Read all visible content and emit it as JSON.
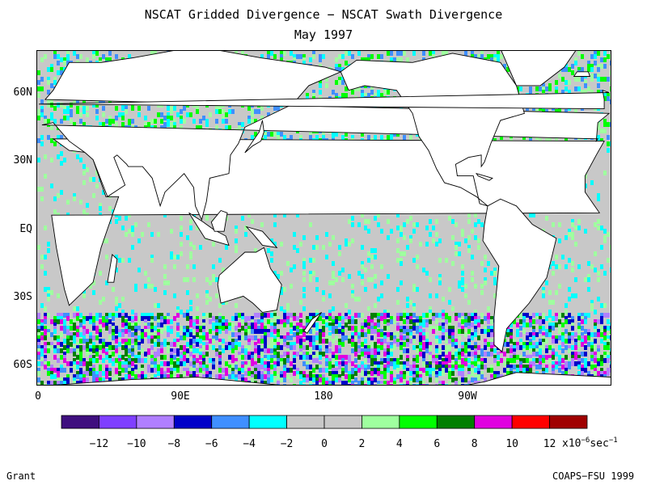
{
  "title": "NSCAT Gridded Divergence − NSCAT Swath Divergence",
  "subtitle": "May 1997",
  "author": "Grant",
  "credit": "COAPS−FSU 1999",
  "chart_data": {
    "type": "heatmap",
    "projection": "equirectangular",
    "lon_range": [
      0,
      360
    ],
    "lat_range": [
      -70,
      75
    ],
    "lat_ticks": [
      "60N",
      "30N",
      "EQ",
      "30S",
      "60S"
    ],
    "lon_ticks": [
      "0",
      "90E",
      "180",
      "90W"
    ],
    "colorbar": {
      "tick_labels": [
        "−12",
        "−10",
        "−8",
        "−6",
        "−4",
        "−2",
        "0",
        "2",
        "4",
        "6",
        "8",
        "10",
        "12"
      ],
      "unit_prefix": "x10",
      "unit_exp": "−6",
      "unit_suffix": "sec",
      "unit_exp2": "−1",
      "colors": [
        "#3f0f7f",
        "#7f3fff",
        "#b07fff",
        "#0000c8",
        "#3f8fff",
        "#00ffff",
        "#c8c8c8",
        "#c8c8c8",
        "#9fff9f",
        "#00ff00",
        "#007f00",
        "#e000e0",
        "#ff0000",
        "#a00000"
      ],
      "bounds": [
        -14,
        -12,
        -10,
        -8,
        -6,
        -4,
        -2,
        0,
        2,
        4,
        6,
        8,
        10,
        12,
        14
      ]
    },
    "description_values": "Divergence differences mostly between −2 and 2 (grey) over open ocean; larger magnitudes (±4 to ±12) concentrated in the Southern Ocean (40S–65S) and mid-latitude North Pacific/Atlantic."
  }
}
